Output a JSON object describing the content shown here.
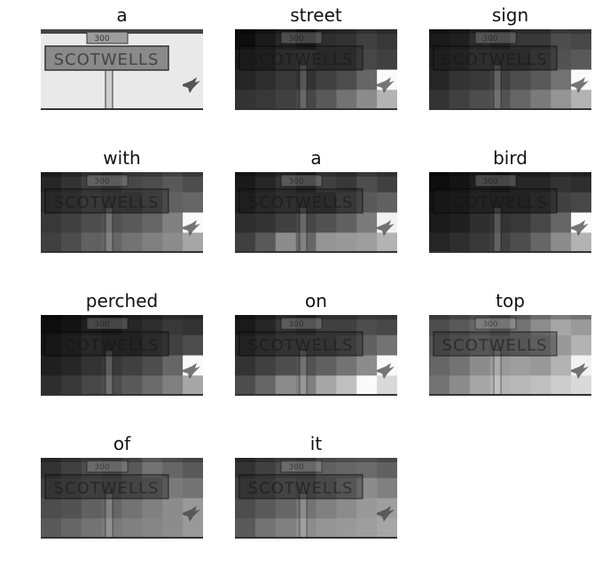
{
  "figure": {
    "panels": [
      {
        "word": "a",
        "heat": null
      },
      {
        "word": "street",
        "heat": [
          [
            0.05,
            0.1,
            0.15,
            0.1,
            0.18,
            0.2,
            0.25,
            0.22
          ],
          [
            0.1,
            0.12,
            0.2,
            0.22,
            0.18,
            0.2,
            0.28,
            0.25
          ],
          [
            0.15,
            0.18,
            0.22,
            0.2,
            0.25,
            0.3,
            0.4,
            0.98
          ],
          [
            0.2,
            0.22,
            0.25,
            0.28,
            0.35,
            0.45,
            0.55,
            0.7
          ]
        ]
      },
      {
        "word": "sign",
        "heat": [
          [
            0.1,
            0.12,
            0.18,
            0.15,
            0.22,
            0.22,
            0.3,
            0.28
          ],
          [
            0.12,
            0.15,
            0.22,
            0.2,
            0.2,
            0.25,
            0.32,
            0.35
          ],
          [
            0.15,
            0.2,
            0.22,
            0.25,
            0.3,
            0.35,
            0.45,
            0.98
          ],
          [
            0.2,
            0.25,
            0.3,
            0.32,
            0.4,
            0.48,
            0.58,
            0.7
          ]
        ]
      },
      {
        "word": "with",
        "heat": [
          [
            0.15,
            0.2,
            0.25,
            0.22,
            0.28,
            0.3,
            0.35,
            0.3
          ],
          [
            0.18,
            0.22,
            0.28,
            0.25,
            0.25,
            0.3,
            0.38,
            0.4
          ],
          [
            0.22,
            0.25,
            0.3,
            0.32,
            0.35,
            0.4,
            0.5,
            0.98
          ],
          [
            0.25,
            0.3,
            0.38,
            0.4,
            0.45,
            0.5,
            0.55,
            0.65
          ]
        ]
      },
      {
        "word": "a",
        "heat": [
          [
            0.1,
            0.15,
            0.2,
            0.15,
            0.25,
            0.22,
            0.3,
            0.25
          ],
          [
            0.12,
            0.18,
            0.22,
            0.2,
            0.2,
            0.28,
            0.35,
            0.38
          ],
          [
            0.18,
            0.2,
            0.25,
            0.28,
            0.32,
            0.38,
            0.48,
            0.95
          ],
          [
            0.25,
            0.35,
            0.55,
            0.4,
            0.58,
            0.6,
            0.62,
            0.7
          ]
        ]
      },
      {
        "word": "bird",
        "heat": [
          [
            0.05,
            0.08,
            0.12,
            0.1,
            0.15,
            0.15,
            0.2,
            0.18
          ],
          [
            0.08,
            0.1,
            0.15,
            0.15,
            0.15,
            0.18,
            0.25,
            0.28
          ],
          [
            0.1,
            0.12,
            0.18,
            0.2,
            0.22,
            0.28,
            0.4,
            0.98
          ],
          [
            0.15,
            0.18,
            0.22,
            0.25,
            0.3,
            0.4,
            0.55,
            0.7
          ]
        ]
      },
      {
        "word": "perched",
        "heat": [
          [
            0.05,
            0.08,
            0.12,
            0.1,
            0.15,
            0.18,
            0.22,
            0.2
          ],
          [
            0.08,
            0.12,
            0.18,
            0.15,
            0.15,
            0.2,
            0.25,
            0.3
          ],
          [
            0.12,
            0.15,
            0.2,
            0.22,
            0.25,
            0.3,
            0.4,
            0.98
          ],
          [
            0.18,
            0.22,
            0.28,
            0.3,
            0.35,
            0.42,
            0.5,
            0.65
          ]
        ]
      },
      {
        "word": "on",
        "heat": [
          [
            0.1,
            0.15,
            0.22,
            0.18,
            0.25,
            0.25,
            0.3,
            0.28
          ],
          [
            0.15,
            0.2,
            0.25,
            0.25,
            0.25,
            0.3,
            0.38,
            0.45
          ],
          [
            0.2,
            0.25,
            0.3,
            0.32,
            0.38,
            0.45,
            0.55,
            0.98
          ],
          [
            0.3,
            0.4,
            0.55,
            0.5,
            0.65,
            0.75,
            0.98,
            0.85
          ]
        ]
      },
      {
        "word": "top",
        "heat": [
          [
            0.3,
            0.35,
            0.4,
            0.35,
            0.45,
            0.55,
            0.65,
            0.6
          ],
          [
            0.35,
            0.4,
            0.45,
            0.42,
            0.45,
            0.5,
            0.6,
            0.7
          ],
          [
            0.4,
            0.45,
            0.55,
            0.6,
            0.62,
            0.6,
            0.7,
            0.95
          ],
          [
            0.45,
            0.55,
            0.65,
            0.7,
            0.72,
            0.75,
            0.8,
            0.85
          ]
        ]
      },
      {
        "word": "of",
        "heat": [
          [
            0.2,
            0.25,
            0.3,
            0.28,
            0.35,
            0.45,
            0.4,
            0.35
          ],
          [
            0.25,
            0.28,
            0.32,
            0.3,
            0.35,
            0.4,
            0.48,
            0.45
          ],
          [
            0.3,
            0.32,
            0.38,
            0.4,
            0.45,
            0.5,
            0.55,
            0.6
          ],
          [
            0.35,
            0.4,
            0.45,
            0.48,
            0.5,
            0.52,
            0.55,
            0.6
          ]
        ]
      },
      {
        "word": "it",
        "heat": [
          [
            0.2,
            0.25,
            0.3,
            0.28,
            0.38,
            0.4,
            0.42,
            0.38
          ],
          [
            0.25,
            0.28,
            0.35,
            0.32,
            0.38,
            0.45,
            0.55,
            0.5
          ],
          [
            0.3,
            0.35,
            0.4,
            0.45,
            0.5,
            0.55,
            0.6,
            0.62
          ],
          [
            0.35,
            0.45,
            0.5,
            0.55,
            0.58,
            0.6,
            0.62,
            0.65
          ]
        ]
      }
    ],
    "sign_text": "SCOTWELLS",
    "number_text": "300"
  }
}
